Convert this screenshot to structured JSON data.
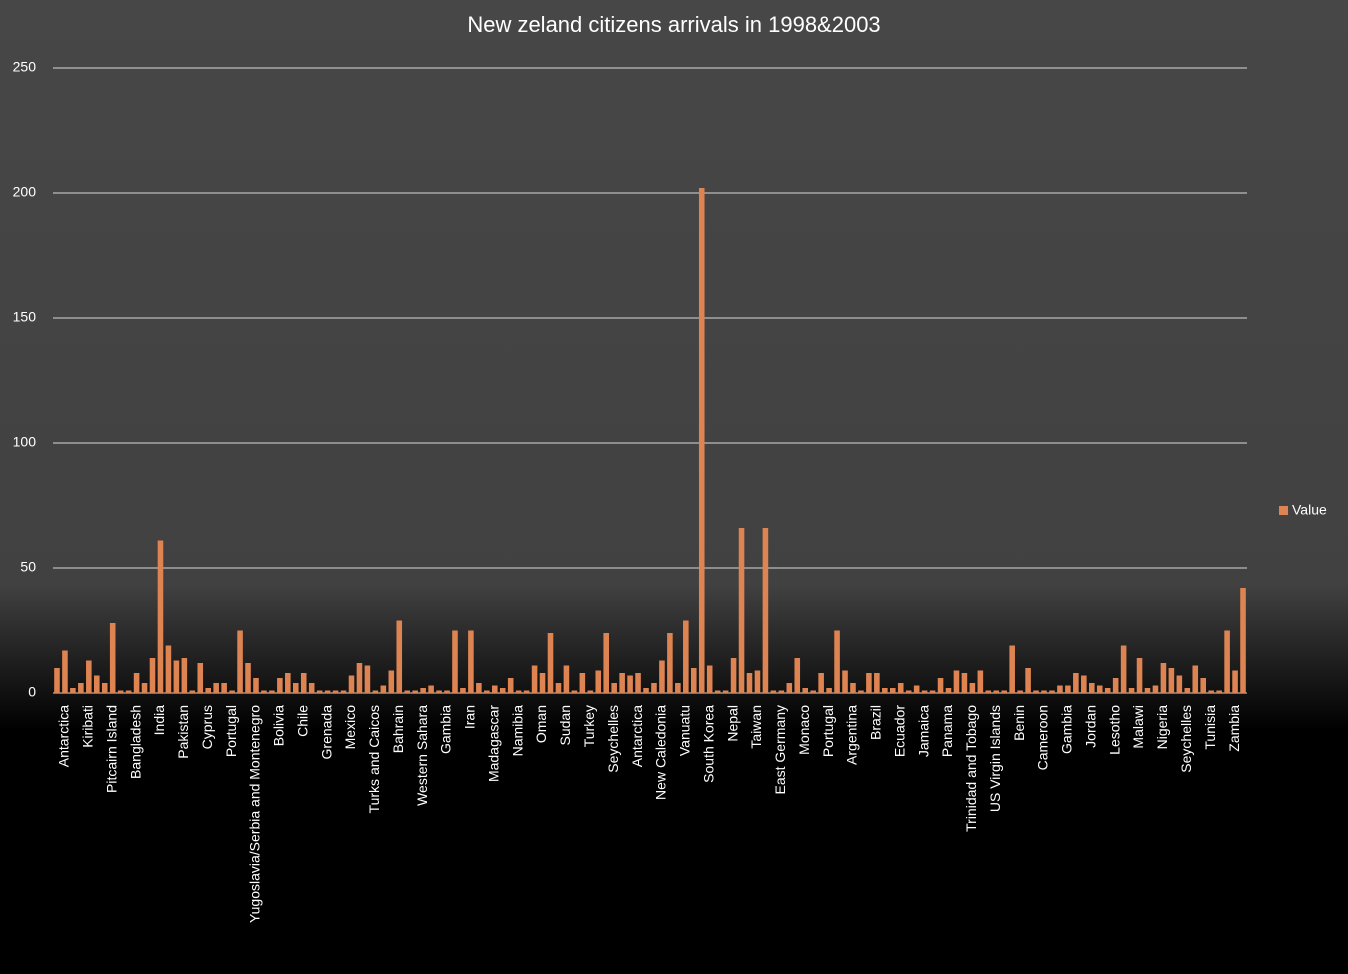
{
  "chart_data": {
    "type": "bar",
    "title": "New zeland citizens arrivals in 1998&2003",
    "categories": [
      null,
      "Antarctica",
      null,
      null,
      "Kiribati",
      null,
      null,
      "Pitcairn Island",
      null,
      null,
      "Bangladesh",
      null,
      null,
      "India",
      null,
      null,
      "Pakistan",
      null,
      null,
      "Cyprus",
      null,
      null,
      "Portugal",
      null,
      null,
      "Yugoslavia/Serbia and Montenegro",
      null,
      null,
      "Bolivia",
      null,
      null,
      "Chile",
      null,
      null,
      "Grenada",
      null,
      null,
      "Mexico",
      null,
      null,
      "Turks and Caicos",
      null,
      null,
      "Bahrain",
      null,
      null,
      "Western Sahara",
      null,
      null,
      "Gambia",
      null,
      null,
      "Iran",
      null,
      null,
      "Madagascar",
      null,
      null,
      "Namibia",
      null,
      null,
      "Oman",
      null,
      null,
      "Sudan",
      null,
      null,
      "Turkey",
      null,
      null,
      "Seychelles",
      null,
      null,
      "Antarctica",
      null,
      null,
      "New Caledonia",
      null,
      null,
      "Vanuatu",
      null,
      null,
      "South Korea",
      null,
      null,
      "Nepal",
      null,
      null,
      "Taiwan",
      null,
      null,
      "East Germany",
      null,
      null,
      "Monaco",
      null,
      null,
      "Portugal",
      null,
      null,
      "Argentina",
      null,
      null,
      "Brazil",
      null,
      null,
      "Ecuador",
      null,
      null,
      "Jamaica",
      null,
      null,
      "Panama",
      null,
      null,
      "Trinidad and Tobago",
      null,
      null,
      "US Virgin Islands",
      null,
      null,
      "Benin",
      null,
      null,
      "Cameroon",
      null,
      null,
      "Gambia",
      null,
      null,
      "Jordan",
      null,
      null,
      "Lesotho",
      null,
      null,
      "Malawi",
      null,
      null,
      "Nigeria",
      null,
      null,
      "Seychelles",
      null,
      null,
      "Tunisia",
      null,
      null,
      "Zambia",
      null
    ],
    "series": [
      {
        "name": "Value",
        "color": "#dd8452",
        "values": [
          10,
          17,
          2,
          4,
          13,
          7,
          4,
          28,
          1,
          1,
          8,
          4,
          14,
          61,
          19,
          13,
          14,
          1,
          12,
          2,
          4,
          4,
          1,
          25,
          12,
          6,
          1,
          1,
          6,
          8,
          4,
          8,
          4,
          1,
          1,
          1,
          1,
          7,
          12,
          11,
          1,
          3,
          9,
          29,
          1,
          1,
          2,
          3,
          1,
          1,
          25,
          2,
          25,
          4,
          1,
          3,
          2,
          6,
          1,
          1,
          11,
          8,
          24,
          4,
          11,
          1,
          8,
          1,
          9,
          24,
          4,
          8,
          7,
          8,
          2,
          4,
          13,
          24,
          4,
          29,
          10,
          202,
          11,
          1,
          1,
          14,
          66,
          8,
          9,
          66,
          1,
          1,
          4,
          14,
          2,
          1,
          8,
          2,
          25,
          9,
          4,
          1,
          8,
          8,
          2,
          2,
          4,
          1,
          3,
          1,
          1,
          6,
          2,
          9,
          8,
          4,
          9,
          1,
          1,
          1,
          19,
          1,
          10,
          1,
          1,
          1,
          3,
          3,
          8,
          7,
          4,
          3,
          2,
          6,
          19,
          2,
          14,
          2,
          3,
          12,
          10,
          7,
          2,
          11,
          6,
          1,
          1,
          25,
          9,
          42
        ]
      }
    ],
    "ylim": [
      0,
      250
    ],
    "yticks": [
      0,
      50,
      100,
      150,
      200,
      250
    ],
    "grid": true,
    "legend": "right"
  }
}
